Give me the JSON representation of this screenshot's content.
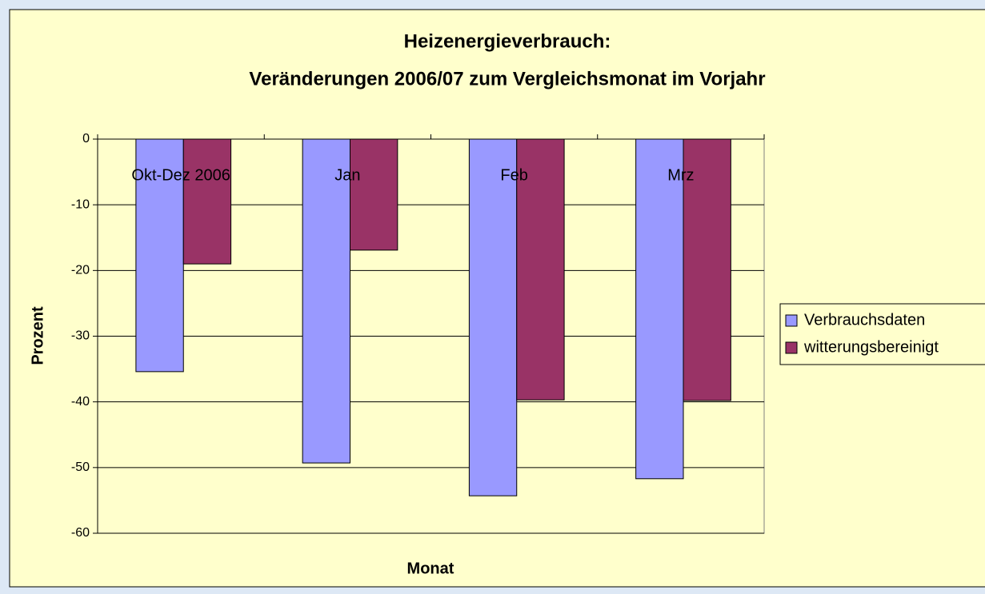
{
  "chart_data": {
    "type": "bar",
    "title": "Heizenergieverbrauch:",
    "subtitle": "Veränderungen 2006/07 zum Vergleichsmonat im Vorjahr",
    "x_label": "Monat",
    "y_label": "Prozent",
    "categories": [
      "Okt-Dez 2006",
      "Jan",
      "Feb",
      "Mrz"
    ],
    "series": [
      {
        "name": "Verbrauchsdaten",
        "color": "#9999ff",
        "values": [
          -35.4,
          -49.3,
          -54.3,
          -51.7
        ]
      },
      {
        "name": "witterungsbereinigt",
        "color": "#993366",
        "values": [
          -19.0,
          -16.9,
          -39.7,
          -39.8
        ]
      }
    ],
    "ylim": [
      -60,
      0
    ],
    "yticks": [
      0,
      -10,
      -20,
      -30,
      -40,
      -50,
      -60
    ],
    "grid": true,
    "legend": "right"
  }
}
